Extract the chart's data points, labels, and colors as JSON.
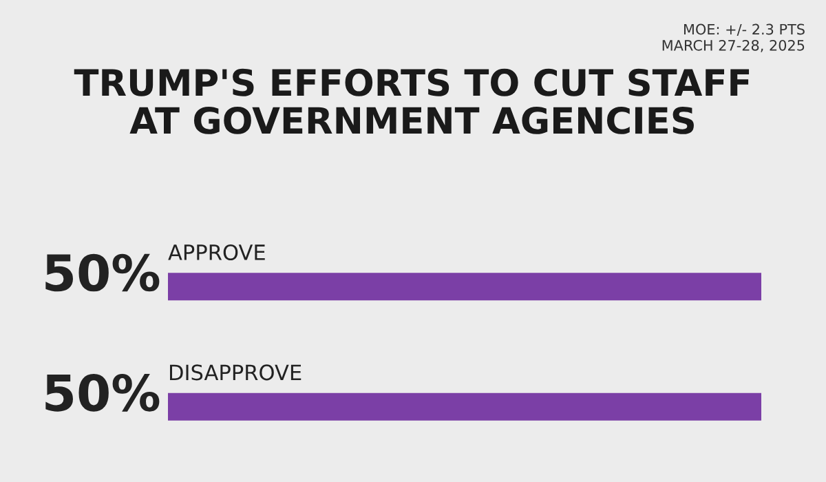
{
  "chart_data": {
    "type": "bar",
    "orientation": "horizontal",
    "title": "TRUMP'S EFFORTS TO CUT STAFF\nAT GOVERNMENT AGENCIES",
    "categories": [
      "APPROVE",
      "DISAPPROVE"
    ],
    "values": [
      50,
      50
    ],
    "color": "#7b3fa6",
    "value_labels": [
      "50%",
      "50%"
    ],
    "annotations": [
      "MOE: +/- 2.3 PTS\nMARCH 27-28, 2025"
    ]
  }
}
